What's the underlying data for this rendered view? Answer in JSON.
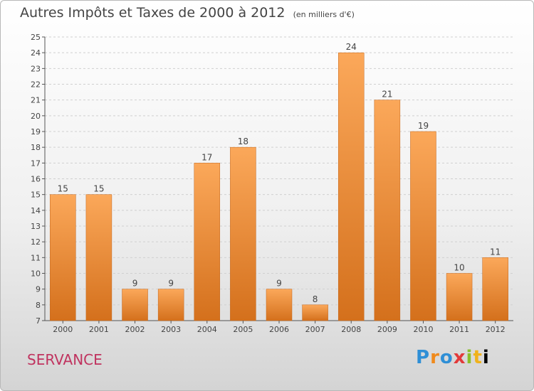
{
  "chart_data": {
    "type": "bar",
    "title": "Autres Impôts et Taxes de 2000 à 2012",
    "subtitle": "(en milliers d'€)",
    "categories": [
      "2000",
      "2001",
      "2002",
      "2003",
      "2004",
      "2005",
      "2006",
      "2007",
      "2008",
      "2009",
      "2010",
      "2011",
      "2012"
    ],
    "values": [
      15,
      15,
      9,
      9,
      17,
      18,
      9,
      8,
      24,
      21,
      19,
      10,
      11
    ],
    "ylim": [
      7,
      25
    ],
    "yticks": [
      7,
      8,
      9,
      10,
      11,
      12,
      13,
      14,
      15,
      16,
      17,
      18,
      19,
      20,
      21,
      22,
      23,
      24,
      25
    ],
    "grid": true,
    "bar_color": "#f28c28"
  },
  "footer": {
    "commune": "SERVANCE",
    "logo_letters": [
      "P",
      "r",
      "o",
      "x",
      "i",
      "t",
      "i"
    ]
  }
}
